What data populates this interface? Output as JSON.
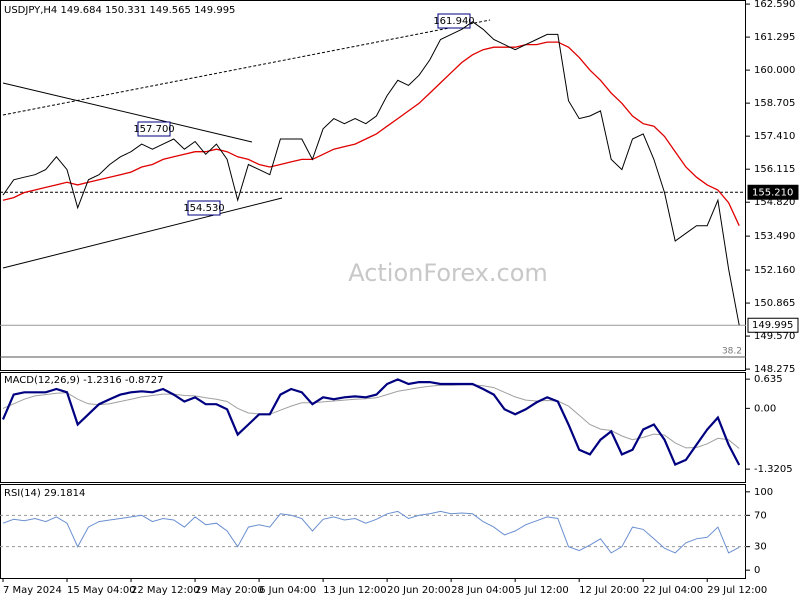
{
  "watermark": "ActionForex.com",
  "chart_data": [
    {
      "type": "line",
      "title": "USDJPY,H4  149.684 150.331 149.565 149.995",
      "values": [
        155.1,
        155.7,
        155.8,
        155.9,
        156.1,
        156.6,
        156.1,
        154.6,
        155.7,
        155.9,
        156.3,
        156.6,
        156.8,
        157.1,
        156.9,
        157.1,
        157.3,
        156.9,
        157.2,
        156.7,
        157.1,
        156.5,
        154.9,
        156.3,
        156.1,
        155.9,
        157.3,
        157.3,
        157.3,
        156.5,
        157.7,
        158.1,
        157.9,
        158.1,
        157.9,
        158.2,
        159.0,
        159.6,
        159.4,
        159.8,
        160.4,
        161.2,
        161.4,
        161.6,
        161.9,
        161.6,
        161.2,
        161.0,
        160.8,
        161.0,
        161.2,
        161.4,
        161.4,
        158.8,
        158.1,
        158.2,
        158.4,
        156.5,
        156.1,
        157.3,
        157.5,
        156.5,
        155.2,
        153.3,
        153.6,
        153.9,
        153.9,
        154.9,
        152.2,
        149.995
      ],
      "color": "#000000",
      "ma_values": [
        154.9,
        155.0,
        155.2,
        155.3,
        155.4,
        155.5,
        155.6,
        155.5,
        155.6,
        155.7,
        155.8,
        155.9,
        156.0,
        156.2,
        156.3,
        156.5,
        156.6,
        156.7,
        156.8,
        156.8,
        156.9,
        156.8,
        156.6,
        156.5,
        156.3,
        156.2,
        156.3,
        156.4,
        156.5,
        156.5,
        156.7,
        156.9,
        157.0,
        157.1,
        157.3,
        157.5,
        157.8,
        158.1,
        158.4,
        158.7,
        159.1,
        159.5,
        159.9,
        160.3,
        160.6,
        160.8,
        160.9,
        160.9,
        160.9,
        161.0,
        161.0,
        161.1,
        161.1,
        160.9,
        160.5,
        160.0,
        159.6,
        159.1,
        158.7,
        158.2,
        157.9,
        157.8,
        157.4,
        156.8,
        156.2,
        155.8,
        155.5,
        155.3,
        154.8,
        153.9
      ],
      "ma_color": "#e00000",
      "ylim": [
        148.24,
        162.75
      ],
      "yticks": [
        {
          "value": 162.59,
          "label": "162.590"
        },
        {
          "value": 161.295,
          "label": "161.295"
        },
        {
          "value": 160.0,
          "label": "160.000"
        },
        {
          "value": 158.705,
          "label": "158.705"
        },
        {
          "value": 157.41,
          "label": "157.410"
        },
        {
          "value": 156.115,
          "label": "156.115"
        },
        {
          "value": 154.82,
          "label": "154.820"
        },
        {
          "value": 153.49,
          "label": "153.490"
        },
        {
          "value": 152.16,
          "label": "152.160"
        },
        {
          "value": 150.865,
          "label": "150.865"
        },
        {
          "value": 149.57,
          "label": "149.570"
        },
        {
          "value": 148.275,
          "label": "148.275"
        }
      ],
      "levels": [
        {
          "value": 155.21,
          "label": "155.210"
        },
        {
          "value": 149.995,
          "label": "149.995"
        }
      ],
      "fib": {
        "value": 148.75,
        "label": "38.2"
      },
      "annotations": [
        "161.940",
        "157.700",
        "154.530"
      ]
    },
    {
      "type": "line",
      "title": "MACD(12,26,9) -1.2316 -0.8727",
      "values": [
        -0.24,
        0.3,
        0.35,
        0.35,
        0.35,
        0.42,
        0.35,
        -0.35,
        -0.13,
        0.09,
        0.2,
        0.3,
        0.35,
        0.37,
        0.35,
        0.42,
        0.3,
        0.15,
        0.24,
        0.09,
        0.09,
        -0.02,
        -0.57,
        -0.35,
        -0.13,
        -0.13,
        0.3,
        0.42,
        0.35,
        0.09,
        0.24,
        0.2,
        0.24,
        0.26,
        0.24,
        0.3,
        0.53,
        0.63,
        0.53,
        0.57,
        0.57,
        0.53,
        0.53,
        0.53,
        0.53,
        0.42,
        0.3,
        -0.02,
        -0.13,
        -0.02,
        0.13,
        0.24,
        0.15,
        -0.35,
        -0.9,
        -1.0,
        -0.68,
        -0.5,
        -1.0,
        -0.9,
        -0.46,
        -0.35,
        -0.68,
        -1.22,
        -1.12,
        -0.79,
        -0.46,
        -0.2,
        -0.79,
        -1.2316
      ],
      "color": "#000080",
      "signal_values": [
        0.0,
        0.1,
        0.2,
        0.27,
        0.3,
        0.33,
        0.34,
        0.2,
        0.1,
        0.08,
        0.1,
        0.15,
        0.2,
        0.25,
        0.28,
        0.31,
        0.31,
        0.28,
        0.27,
        0.23,
        0.2,
        0.15,
        0.0,
        -0.1,
        -0.12,
        -0.13,
        -0.04,
        0.05,
        0.12,
        0.12,
        0.14,
        0.16,
        0.18,
        0.2,
        0.21,
        0.23,
        0.3,
        0.37,
        0.41,
        0.45,
        0.48,
        0.5,
        0.5,
        0.51,
        0.51,
        0.49,
        0.45,
        0.35,
        0.25,
        0.18,
        0.16,
        0.17,
        0.16,
        0.05,
        -0.15,
        -0.35,
        -0.45,
        -0.48,
        -0.6,
        -0.68,
        -0.63,
        -0.56,
        -0.58,
        -0.75,
        -0.86,
        -0.85,
        -0.77,
        -0.65,
        -0.68,
        -0.8727
      ],
      "signal_color": "#a0a0a0",
      "ylim": [
        -1.6,
        0.79
      ],
      "yticks": [
        0.635,
        {
          "value": 0,
          "label": "0.00"
        },
        -1.3205
      ]
    },
    {
      "type": "line",
      "title": "RSI(14) 29.1814",
      "values": [
        60,
        65,
        63,
        66,
        62,
        68,
        60,
        30,
        55,
        62,
        64,
        66,
        68,
        70,
        62,
        66,
        64,
        55,
        68,
        58,
        60,
        50,
        30,
        55,
        58,
        55,
        72,
        70,
        66,
        50,
        65,
        68,
        64,
        66,
        60,
        65,
        72,
        75,
        66,
        70,
        72,
        75,
        72,
        73,
        72,
        62,
        55,
        45,
        50,
        58,
        63,
        68,
        66,
        30,
        25,
        32,
        40,
        22,
        30,
        55,
        52,
        40,
        28,
        22,
        35,
        40,
        42,
        55,
        22,
        29.1814
      ],
      "color": "#6a8fd0",
      "ylim": [
        -10,
        110
      ],
      "yticks": [
        100,
        70,
        30,
        0
      ],
      "levels": [
        70,
        30
      ],
      "categories": [
        "7 May 2024",
        null,
        null,
        null,
        null,
        null,
        "15 May 04:00",
        null,
        null,
        null,
        null,
        null,
        "22 May 12:00",
        null,
        null,
        null,
        null,
        null,
        "29 May 20:00",
        null,
        null,
        null,
        null,
        null,
        "6 Jun 04:00",
        null,
        null,
        null,
        null,
        null,
        "13 Jun 12:00",
        null,
        null,
        null,
        null,
        null,
        "20 Jun 20:00",
        null,
        null,
        null,
        null,
        null,
        "28 Jun 04:00",
        null,
        null,
        null,
        null,
        null,
        "5 Jul 12:00",
        null,
        null,
        null,
        null,
        null,
        "12 Jul 20:00",
        null,
        null,
        null,
        null,
        null,
        "22 Jul 04:00",
        null,
        null,
        null,
        null,
        null,
        "29 Jul 12:00",
        null,
        null,
        null
      ]
    }
  ]
}
